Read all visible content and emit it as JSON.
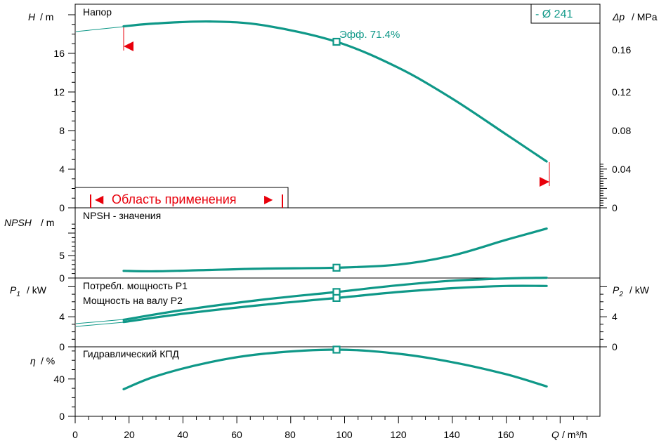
{
  "colors": {
    "curve": "#0f9888",
    "range": "#e8000b",
    "axis": "#000000"
  },
  "x_axis": {
    "label_sym": "Q",
    "label_unit": "/ m³/h",
    "ticks": [
      0,
      20,
      40,
      60,
      80,
      100,
      120,
      140,
      160
    ]
  },
  "legend": {
    "diameter": "- Ø 241"
  },
  "head_panel": {
    "title": "Напор",
    "y_sym": "H",
    "y_unit": "/ m",
    "ticks": [
      "0",
      "4",
      "8",
      "12",
      "16"
    ],
    "right_sym": "Δp",
    "right_unit": "/ MPa",
    "right_ticks": [
      "0",
      "0.04",
      "0.08",
      "0.12",
      "0.16"
    ],
    "eff_label": "Эфф.  71.4%",
    "range_label": "Область применения"
  },
  "npsh_panel": {
    "title": "NPSH - значения",
    "y_sym": "NPSH",
    "y_unit": "/ m",
    "ticks": [
      "0",
      "5"
    ]
  },
  "power_panel": {
    "title_p1": "Потребл. мощность P1",
    "title_p2": "Мощность на валу P2",
    "left_sym": "P",
    "left_sub": "1",
    "left_unit": "/ kW",
    "right_sym": "P",
    "right_sub": "2",
    "right_unit": "/ kW",
    "ticks": [
      "0",
      "4"
    ]
  },
  "eff_panel": {
    "title": "Гидравлический КПД",
    "y_sym": "η",
    "y_unit": "/ %",
    "ticks": [
      "0",
      "40"
    ]
  },
  "chart_data": {
    "type": "line",
    "x_label": "Q / m³/h",
    "xlim": [
      0,
      190
    ],
    "duty_point_q": 97,
    "operating_range": [
      18,
      175
    ],
    "panels": [
      {
        "name": "Напор",
        "ylabel": "H / m",
        "ylim": [
          0,
          20
        ],
        "series": [
          {
            "values": [
              [
                18,
                18.8
              ],
              [
                30,
                19.1
              ],
              [
                50,
                19.3
              ],
              [
                70,
                18.9
              ],
              [
                97,
                17.2
              ],
              [
                120,
                14.5
              ],
              [
                140,
                11.3
              ],
              [
                160,
                7.6
              ],
              [
                175,
                4.8
              ]
            ]
          }
        ]
      },
      {
        "name": "NPSH - значения",
        "ylabel": "NPSH / m",
        "ylim": [
          0,
          12
        ],
        "series": [
          {
            "values": [
              [
                18,
                1.6
              ],
              [
                30,
                1.5
              ],
              [
                50,
                1.8
              ],
              [
                70,
                2.1
              ],
              [
                97,
                2.3
              ],
              [
                120,
                3.0
              ],
              [
                140,
                5.0
              ],
              [
                160,
                8.5
              ],
              [
                175,
                11.0
              ]
            ]
          }
        ]
      },
      {
        "name": "Потребл. мощность P1 / Мощность на валу P2",
        "ylabel": "P1 / kW",
        "ylim": [
          0,
          11
        ],
        "series": [
          {
            "name": "Потребл. мощность P1",
            "values": [
              [
                18,
                3.6
              ],
              [
                40,
                4.9
              ],
              [
                70,
                6.3
              ],
              [
                97,
                7.3
              ],
              [
                120,
                8.2
              ],
              [
                140,
                8.8
              ],
              [
                160,
                9.1
              ],
              [
                175,
                9.2
              ]
            ]
          },
          {
            "name": "Мощность на валу P2",
            "values": [
              [
                18,
                3.3
              ],
              [
                40,
                4.4
              ],
              [
                70,
                5.6
              ],
              [
                97,
                6.5
              ],
              [
                120,
                7.3
              ],
              [
                140,
                7.8
              ],
              [
                160,
                8.1
              ],
              [
                175,
                8.1
              ]
            ]
          }
        ]
      },
      {
        "name": "Гидравлический КПД",
        "ylabel": "η / %",
        "ylim": [
          0,
          80
        ],
        "series": [
          {
            "values": [
              [
                18,
                29
              ],
              [
                30,
                43
              ],
              [
                50,
                58
              ],
              [
                70,
                67
              ],
              [
                97,
                71.4
              ],
              [
                120,
                67
              ],
              [
                140,
                58
              ],
              [
                160,
                45
              ],
              [
                175,
                32
              ]
            ]
          }
        ]
      }
    ]
  }
}
